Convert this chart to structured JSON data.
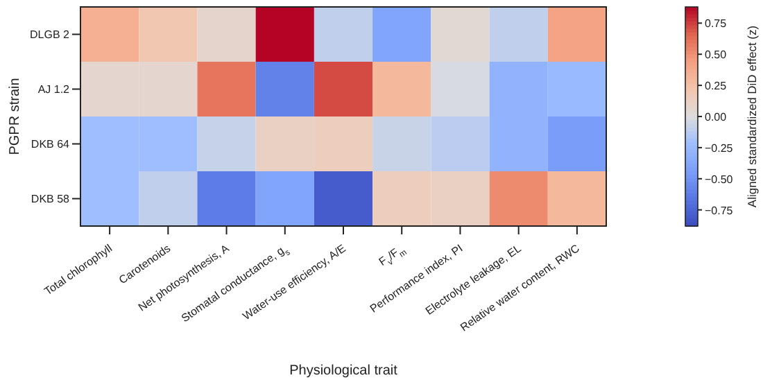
{
  "chart_data": {
    "type": "heatmap",
    "xlabel": "Physiological trait",
    "ylabel": "PGPR strain",
    "clabel": "Aligned standardized DiD effect (z)",
    "categories": [
      "Total chlorophyll",
      "Carotenoids",
      "Net photosynthesis, A",
      "Stomatal conductance, g$_{s}$",
      "Water-use efficiency, A/E",
      "F$_{v}$/F$_{m}$",
      "Performance index, PI",
      "Electrolyte leakage, EL",
      "Relative water content, RWC"
    ],
    "y_categories": [
      "DLGB 2",
      "AJ 1.2",
      "DKB 64",
      "DKB 58"
    ],
    "cells": [
      [
        0.35,
        0.2,
        0.08,
        0.88,
        -0.1,
        -0.4,
        0.05,
        -0.1,
        0.42
      ],
      [
        0.07,
        0.07,
        0.6,
        -0.6,
        0.72,
        0.3,
        -0.02,
        -0.3,
        -0.25
      ],
      [
        -0.22,
        -0.22,
        -0.08,
        0.12,
        0.15,
        -0.07,
        -0.12,
        -0.3,
        -0.45
      ],
      [
        -0.22,
        -0.1,
        -0.63,
        -0.4,
        -0.8,
        0.15,
        0.12,
        0.52,
        0.3
      ]
    ],
    "clim": [
      -0.88,
      0.88
    ],
    "cticks": [
      {
        "value": -0.75,
        "label": "−0.75"
      },
      {
        "value": -0.5,
        "label": "−0.50"
      },
      {
        "value": -0.25,
        "label": "−0.25"
      },
      {
        "value": 0,
        "label": "0.00"
      },
      {
        "value": 0.25,
        "label": "0.25"
      },
      {
        "value": 0.5,
        "label": "0.50"
      },
      {
        "value": 0.75,
        "label": "0.75"
      }
    ]
  }
}
